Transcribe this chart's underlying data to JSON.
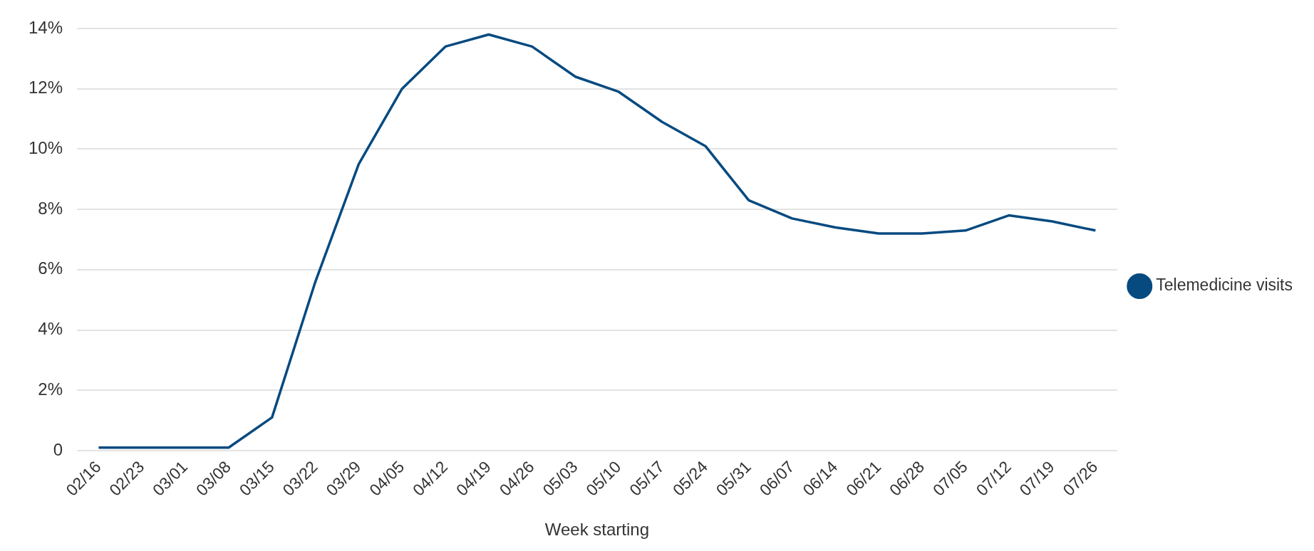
{
  "chart_data": {
    "type": "line",
    "xlabel": "Week starting",
    "categories": [
      "02/16",
      "02/23",
      "03/01",
      "03/08",
      "03/15",
      "03/22",
      "03/29",
      "04/05",
      "04/12",
      "04/19",
      "04/26",
      "05/03",
      "05/10",
      "05/17",
      "05/24",
      "05/31",
      "06/07",
      "06/14",
      "06/21",
      "06/28",
      "07/05",
      "07/12",
      "07/19",
      "07/26"
    ],
    "series": [
      {
        "name": "Telemedicine visits",
        "color": "#064a80",
        "values": [
          0.1,
          0.1,
          0.1,
          0.1,
          1.1,
          5.6,
          9.5,
          12.0,
          13.4,
          13.8,
          13.4,
          12.4,
          11.9,
          10.9,
          10.1,
          8.3,
          7.7,
          7.4,
          7.2,
          7.2,
          7.3,
          7.8,
          7.6,
          7.3
        ]
      }
    ],
    "ylim": [
      0,
      14
    ],
    "yticks": [
      0,
      {
        "value": 2,
        "label": "2%"
      },
      {
        "value": 4,
        "label": "4%"
      },
      {
        "value": 6,
        "label": "6%"
      },
      {
        "value": 8,
        "label": "8%"
      },
      {
        "value": 10,
        "label": "10%"
      },
      {
        "value": 12,
        "label": "12%"
      },
      {
        "value": 14,
        "label": "14%"
      }
    ],
    "grid": "y",
    "legend": "right",
    "marker": "none",
    "line_style": "solid"
  }
}
